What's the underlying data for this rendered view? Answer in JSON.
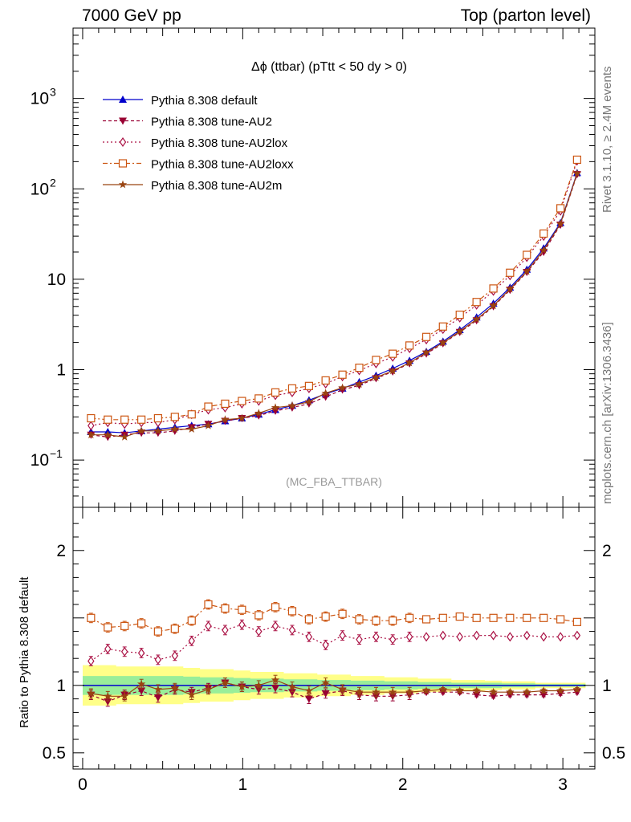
{
  "header": {
    "left": "7000 GeV pp",
    "right": "Top (parton level)"
  },
  "side_labels": {
    "rivet": "Rivet 3.1.10, ≥ 2.4M events",
    "mcplots": "mcplots.cern.ch [arXiv:1306.3436]"
  },
  "colors": {
    "default": "#0000cc",
    "AU2": "#990033",
    "AU2lox": "#aa1144",
    "AU2loxx": "#cc5511",
    "AU2m": "#994411",
    "band_green": "#99ee99",
    "band_yellow": "#ffff88"
  },
  "chart_data": [
    {
      "type": "line",
      "title": "Δϕ (ttbar) (pTtt < 50 dy > 0)",
      "watermark": "(MC_FBA_TTBAR)",
      "yscale": "log",
      "ylim": [
        0.03,
        6000
      ],
      "xlim": [
        -0.06,
        3.2
      ],
      "yticks": [
        {
          "value": 0.1,
          "base": "10",
          "exp": "−1"
        },
        {
          "value": 1,
          "label": "1"
        },
        {
          "value": 10,
          "label": "10"
        },
        {
          "value": 100,
          "base": "10",
          "exp": "2"
        },
        {
          "value": 1000,
          "base": "10",
          "exp": "3"
        }
      ],
      "legend_position": "top-left",
      "x": [
        0.052,
        0.157,
        0.262,
        0.367,
        0.471,
        0.576,
        0.681,
        0.785,
        0.89,
        0.995,
        1.1,
        1.204,
        1.309,
        1.414,
        1.518,
        1.623,
        1.728,
        1.833,
        1.937,
        2.042,
        2.147,
        2.251,
        2.356,
        2.461,
        2.566,
        2.67,
        2.775,
        2.88,
        2.985,
        3.089
      ],
      "series": [
        {
          "name": "Pythia 8.308 default",
          "key": "default",
          "marker": "triangle-up",
          "dash": "solid",
          "values": [
            0.205,
            0.205,
            0.2,
            0.21,
            0.22,
            0.23,
            0.24,
            0.25,
            0.27,
            0.29,
            0.32,
            0.36,
            0.4,
            0.46,
            0.54,
            0.62,
            0.73,
            0.86,
            1.03,
            1.26,
            1.58,
            2.05,
            2.75,
            3.8,
            5.4,
            8.1,
            12.8,
            22,
            42,
            150
          ]
        },
        {
          "name": "Pythia 8.308 tune-AU2",
          "key": "AU2",
          "marker": "triangle-down",
          "dash": "4,3",
          "values": [
            0.19,
            0.18,
            0.19,
            0.2,
            0.2,
            0.21,
            0.23,
            0.25,
            0.27,
            0.29,
            0.31,
            0.35,
            0.38,
            0.42,
            0.5,
            0.6,
            0.67,
            0.8,
            0.95,
            1.17,
            1.5,
            1.95,
            2.6,
            3.5,
            5.0,
            7.6,
            12.0,
            20,
            40,
            145
          ]
        },
        {
          "name": "Pythia 8.308 tune-AU2lox",
          "key": "AU2lox",
          "marker": "diamond-open",
          "dash": "2,3",
          "values": [
            0.24,
            0.26,
            0.25,
            0.26,
            0.26,
            0.28,
            0.32,
            0.36,
            0.38,
            0.42,
            0.45,
            0.52,
            0.56,
            0.62,
            0.7,
            0.84,
            0.98,
            1.17,
            1.38,
            1.72,
            2.15,
            2.8,
            3.75,
            5.2,
            7.4,
            11.0,
            17.5,
            30,
            57,
            205
          ]
        },
        {
          "name": "Pythia 8.308 tune-AU2loxx",
          "key": "AU2loxx",
          "marker": "square-open",
          "dash": "6,3,2,3",
          "values": [
            0.29,
            0.28,
            0.28,
            0.28,
            0.29,
            0.3,
            0.32,
            0.39,
            0.42,
            0.45,
            0.48,
            0.56,
            0.62,
            0.66,
            0.76,
            0.88,
            1.05,
            1.28,
            1.5,
            1.85,
            2.3,
            3.0,
            4.05,
            5.6,
            7.9,
            11.8,
            18.6,
            32,
            61,
            210
          ]
        },
        {
          "name": "Pythia 8.308 tune-AU2m",
          "key": "AU2m",
          "marker": "star",
          "dash": "solid",
          "values": [
            0.19,
            0.19,
            0.18,
            0.21,
            0.21,
            0.22,
            0.22,
            0.24,
            0.28,
            0.29,
            0.33,
            0.38,
            0.4,
            0.44,
            0.55,
            0.63,
            0.69,
            0.82,
            0.97,
            1.19,
            1.55,
            1.98,
            2.65,
            3.6,
            5.1,
            7.8,
            12.2,
            21,
            41,
            148
          ]
        }
      ]
    },
    {
      "type": "line",
      "ylabel": "Ratio to Pythia 8.308 default",
      "ylim": [
        0.38,
        2.32
      ],
      "xlim": [
        -0.06,
        3.2
      ],
      "xticks": [
        "0",
        "1",
        "2",
        "3"
      ],
      "yticks": [
        "0.5",
        "1",
        "2"
      ],
      "reference": 1.0,
      "band_inner": [
        0.07,
        0.07,
        0.07,
        0.07,
        0.07,
        0.07,
        0.065,
        0.06,
        0.06,
        0.055,
        0.05,
        0.05,
        0.045,
        0.045,
        0.04,
        0.04,
        0.035,
        0.035,
        0.03,
        0.03,
        0.025,
        0.025,
        0.02,
        0.02,
        0.02,
        0.015,
        0.015,
        0.01,
        0.01,
        0.01
      ],
      "band_outer": [
        0.15,
        0.15,
        0.14,
        0.14,
        0.14,
        0.14,
        0.13,
        0.12,
        0.12,
        0.11,
        0.1,
        0.1,
        0.09,
        0.09,
        0.08,
        0.08,
        0.07,
        0.07,
        0.06,
        0.06,
        0.05,
        0.05,
        0.04,
        0.04,
        0.035,
        0.03,
        0.03,
        0.02,
        0.02,
        0.02
      ],
      "series": [
        {
          "name": "Pythia 8.308 tune-AU2",
          "key": "AU2",
          "marker": "triangle-down",
          "dash": "4,3",
          "values": [
            0.93,
            0.88,
            0.93,
            0.96,
            0.91,
            0.97,
            0.95,
            0.98,
            1.02,
            0.99,
            0.97,
            0.98,
            0.95,
            0.9,
            0.94,
            0.96,
            0.93,
            0.92,
            0.92,
            0.93,
            0.95,
            0.95,
            0.95,
            0.93,
            0.92,
            0.93,
            0.93,
            0.93,
            0.94,
            0.95
          ]
        },
        {
          "name": "Pythia 8.308 tune-AU2lox",
          "key": "AU2lox",
          "marker": "diamond-open",
          "dash": "2,3",
          "values": [
            1.18,
            1.27,
            1.25,
            1.24,
            1.19,
            1.22,
            1.33,
            1.44,
            1.41,
            1.45,
            1.4,
            1.44,
            1.41,
            1.36,
            1.3,
            1.37,
            1.34,
            1.36,
            1.34,
            1.36,
            1.36,
            1.37,
            1.36,
            1.37,
            1.37,
            1.36,
            1.37,
            1.36,
            1.36,
            1.37
          ]
        },
        {
          "name": "Pythia 8.308 tune-AU2loxx",
          "key": "AU2loxx",
          "marker": "square-open",
          "dash": "6,3,2,3",
          "values": [
            1.5,
            1.43,
            1.44,
            1.46,
            1.4,
            1.42,
            1.48,
            1.6,
            1.57,
            1.56,
            1.52,
            1.58,
            1.55,
            1.49,
            1.51,
            1.53,
            1.49,
            1.48,
            1.48,
            1.5,
            1.49,
            1.5,
            1.51,
            1.5,
            1.5,
            1.5,
            1.5,
            1.5,
            1.49,
            1.47
          ]
        },
        {
          "name": "Pythia 8.308 tune-AU2m",
          "key": "AU2m",
          "marker": "star",
          "dash": "solid",
          "values": [
            0.94,
            0.92,
            0.92,
            1.01,
            0.97,
            0.98,
            0.93,
            0.97,
            1.02,
            0.99,
            1.0,
            1.04,
            0.99,
            0.96,
            1.02,
            0.97,
            0.95,
            0.95,
            0.95,
            0.95,
            0.96,
            0.97,
            0.96,
            0.96,
            0.95,
            0.95,
            0.95,
            0.96,
            0.96,
            0.97
          ]
        }
      ]
    }
  ]
}
